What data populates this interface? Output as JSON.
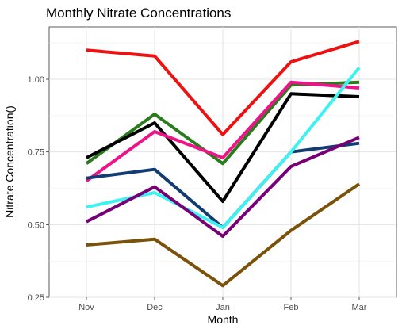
{
  "chart_data": {
    "type": "line",
    "title": "Monthly Nitrate Concentrations",
    "xlabel": "Month",
    "ylabel": "Nitrate Concentration()",
    "categories": [
      "Nov",
      "Dec",
      "Jan",
      "Feb",
      "Mar"
    ],
    "ylim": [
      0.25,
      1.18
    ],
    "yticks": [
      0.25,
      0.5,
      0.75,
      1.0
    ],
    "ytick_labels": [
      "0.25",
      "0.50",
      "0.75",
      "1.00"
    ],
    "grid": true,
    "legend": "none",
    "series": [
      {
        "color": "#ee1111",
        "values": [
          1.1,
          1.08,
          0.81,
          1.06,
          1.13
        ]
      },
      {
        "color": "#2a7a1e",
        "values": [
          0.71,
          0.88,
          0.71,
          0.98,
          0.99
        ]
      },
      {
        "color": "#000000",
        "values": [
          0.73,
          0.85,
          0.58,
          0.95,
          0.94
        ]
      },
      {
        "color": "#ee1388",
        "values": [
          0.65,
          0.82,
          0.73,
          0.99,
          0.97
        ]
      },
      {
        "color": "#133c73",
        "values": [
          0.66,
          0.69,
          0.49,
          0.75,
          0.78
        ]
      },
      {
        "color": "#3ef2f2",
        "values": [
          0.56,
          0.61,
          0.49,
          0.75,
          1.04
        ]
      },
      {
        "color": "#770077",
        "values": [
          0.51,
          0.63,
          0.46,
          0.7,
          0.8
        ]
      },
      {
        "color": "#7a5209",
        "values": [
          0.43,
          0.45,
          0.29,
          0.48,
          0.64
        ]
      }
    ]
  }
}
